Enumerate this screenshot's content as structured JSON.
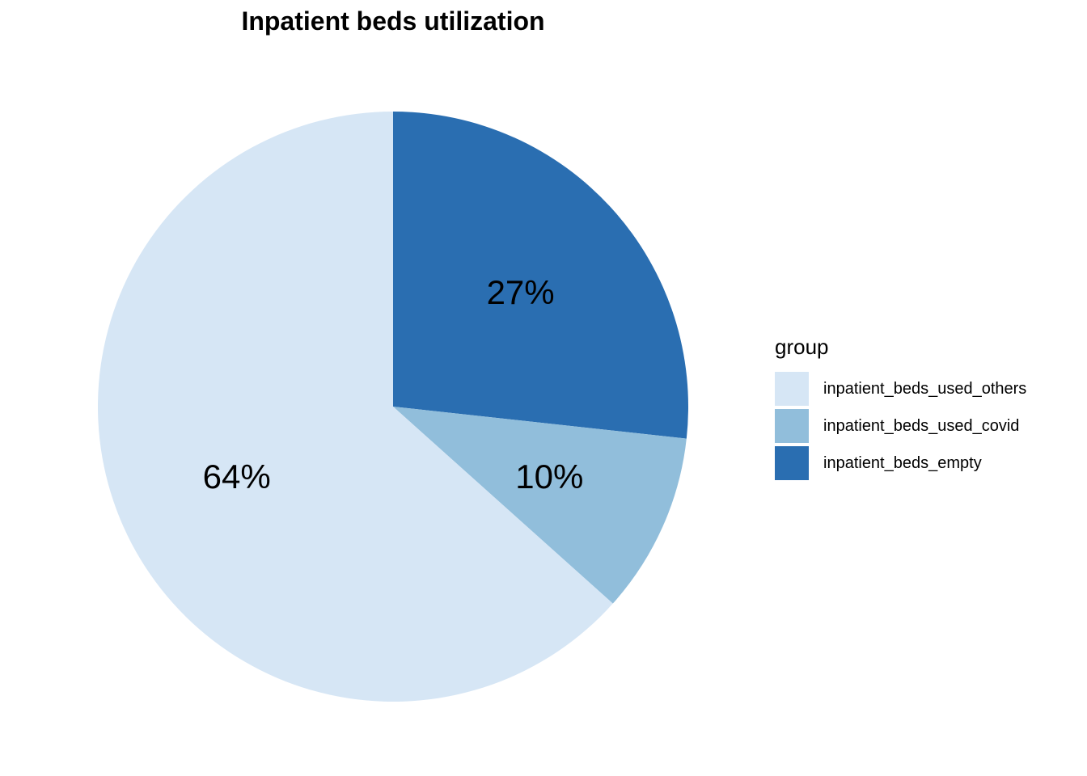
{
  "chart_data": {
    "type": "pie",
    "title": "Inpatient beds utilization",
    "legend_title": "group",
    "legend_position": "right",
    "slices": [
      {
        "name": "inpatient_beds_empty",
        "value": 27,
        "label": "27%",
        "color": "#2a6eb1"
      },
      {
        "name": "inpatient_beds_used_covid",
        "value": 10,
        "label": "10%",
        "color": "#91bedb"
      },
      {
        "name": "inpatient_beds_used_others",
        "value": 64,
        "label": "64%",
        "color": "#d6e6f5"
      }
    ],
    "legend_order": [
      "inpatient_beds_used_others",
      "inpatient_beds_used_covid",
      "inpatient_beds_empty"
    ],
    "start": "12 o'clock",
    "direction": "clockwise"
  }
}
